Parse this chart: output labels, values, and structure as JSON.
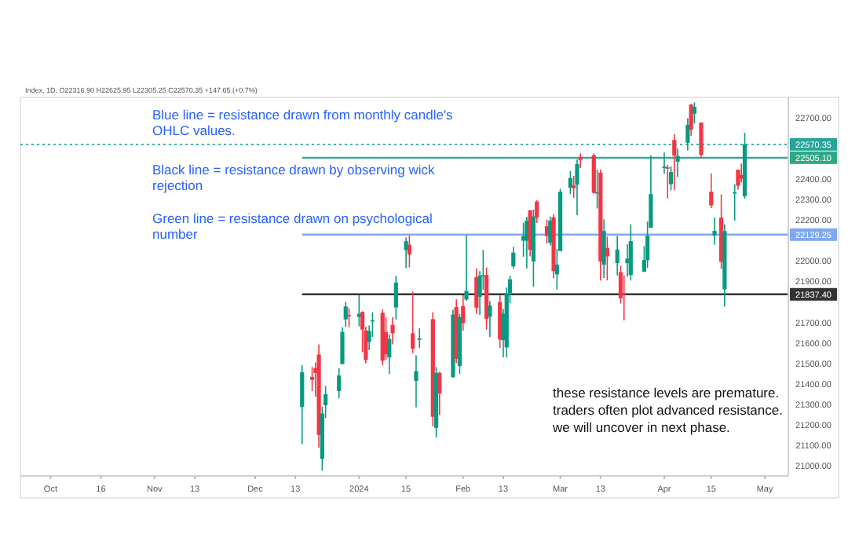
{
  "chart_data": {
    "type": "candlestick",
    "subtitle": "Index, 1D, O22316.90 H22625.95 L22305.25 C22570.35 +147.65 (+0.7%)",
    "x": [
      "2023-12-15",
      "2023-12-18",
      "2023-12-19",
      "2023-12-20",
      "2023-12-21",
      "2023-12-22",
      "2023-12-26",
      "2023-12-27",
      "2023-12-28",
      "2023-12-29",
      "2024-01-01",
      "2024-01-02",
      "2024-01-03",
      "2024-01-04",
      "2024-01-05",
      "2024-01-08",
      "2024-01-09",
      "2024-01-10",
      "2024-01-11",
      "2024-01-12",
      "2024-01-15",
      "2024-01-16",
      "2024-01-17",
      "2024-01-18",
      "2024-01-19",
      "2024-01-23",
      "2024-01-24",
      "2024-01-25",
      "2024-01-29",
      "2024-01-30",
      "2024-01-31",
      "2024-02-01",
      "2024-02-02",
      "2024-02-05",
      "2024-02-06",
      "2024-02-07",
      "2024-02-08",
      "2024-02-09",
      "2024-02-12",
      "2024-02-13",
      "2024-02-14",
      "2024-02-15",
      "2024-02-16",
      "2024-02-19",
      "2024-02-20",
      "2024-02-21",
      "2024-02-22",
      "2024-02-23",
      "2024-02-26",
      "2024-02-27",
      "2024-02-28",
      "2024-02-29",
      "2024-03-01",
      "2024-03-04",
      "2024-03-05",
      "2024-03-06",
      "2024-03-07",
      "2024-03-11",
      "2024-03-12",
      "2024-03-13",
      "2024-03-14",
      "2024-03-15",
      "2024-03-18",
      "2024-03-19",
      "2024-03-20",
      "2024-03-21",
      "2024-03-22",
      "2024-03-26",
      "2024-03-27",
      "2024-03-28",
      "2024-04-01",
      "2024-04-02",
      "2024-04-03",
      "2024-04-04",
      "2024-04-05",
      "2024-04-08",
      "2024-04-09",
      "2024-04-10",
      "2024-04-12",
      "2024-04-15",
      "2024-04-16",
      "2024-04-18",
      "2024-04-19",
      "2024-04-22",
      "2024-04-23",
      "2024-04-24",
      "2024-04-25"
    ],
    "ohlc": [
      [
        21287,
        21492,
        21105,
        21457
      ],
      [
        21434,
        21482,
        21365,
        21419
      ],
      [
        21477,
        21505,
        21338,
        21453
      ],
      [
        21543,
        21593,
        21087,
        21150
      ],
      [
        21033,
        21288,
        20976,
        21255
      ],
      [
        21296,
        21390,
        21232,
        21349
      ],
      [
        21365,
        21477,
        21329,
        21441
      ],
      [
        21497,
        21676,
        21495,
        21654
      ],
      [
        21715,
        21801,
        21678,
        21778
      ],
      [
        21737,
        21770,
        21676,
        21731
      ],
      [
        21727,
        21834,
        21681,
        21742
      ],
      [
        21751,
        21755,
        21555,
        21665
      ],
      [
        21661,
        21678,
        21500,
        21517
      ],
      [
        21605,
        21685,
        21564,
        21658
      ],
      [
        21705,
        21750,
        21629,
        21711
      ],
      [
        21747,
        21763,
        21492,
        21513
      ],
      [
        21653,
        21724,
        21517,
        21545
      ],
      [
        21529,
        21641,
        21448,
        21619
      ],
      [
        21688,
        21726,
        21593,
        21647
      ],
      [
        21773,
        21928,
        21715,
        21895
      ],
      [
        22054,
        22116,
        21965,
        22097
      ],
      [
        22080,
        22124,
        21969,
        22032
      ],
      [
        21647,
        21851,
        21550,
        21572
      ],
      [
        21414,
        21539,
        21285,
        21462
      ],
      [
        21615,
        21671,
        21575,
        21622
      ],
      [
        21716,
        21750,
        21192,
        21239
      ],
      [
        21185,
        21482,
        21137,
        21454
      ],
      [
        21454,
        21459,
        21247,
        21353
      ],
      [
        21433,
        21763,
        21430,
        21738
      ],
      [
        21775,
        21813,
        21501,
        21522
      ],
      [
        21487,
        21742,
        21449,
        21726
      ],
      [
        21780,
        21833,
        21659,
        21697
      ],
      [
        21812,
        22127,
        21806,
        21854
      ],
      [
        21921,
        21964,
        21742,
        21772
      ],
      [
        21825,
        21951,
        21737,
        21929
      ],
      [
        21931,
        22054,
        21860,
        21931
      ],
      [
        21932,
        21969,
        21665,
        21718
      ],
      [
        21728,
        21805,
        21629,
        21783
      ],
      [
        21800,
        21832,
        21575,
        21616
      ],
      [
        21613,
        21766,
        21530,
        21743
      ],
      [
        21578,
        21871,
        21530,
        21840
      ],
      [
        21844,
        21928,
        21793,
        21911
      ],
      [
        21974,
        22069,
        21963,
        22041
      ],
      [
        22100,
        22186,
        22021,
        22122
      ],
      [
        22099,
        22216,
        21964,
        22197
      ],
      [
        22248,
        22249,
        22023,
        22055
      ],
      [
        21998,
        22252,
        21875,
        22218
      ],
      [
        22291,
        22297,
        22186,
        22213
      ],
      [
        22170,
        22202,
        22085,
        22122
      ],
      [
        22090,
        22218,
        22076,
        22198
      ],
      [
        22214,
        22229,
        21915,
        21951
      ],
      [
        21935,
        22060,
        21861,
        21983
      ],
      [
        22049,
        22353,
        22048,
        22339
      ],
      [
        22358,
        22440,
        22327,
        22406
      ],
      [
        22371,
        22416,
        22309,
        22356
      ],
      [
        22373,
        22497,
        22224,
        22474
      ],
      [
        22508,
        22526,
        22455,
        22494
      ],
      [
        22517,
        22526,
        22329,
        22333
      ],
      [
        22335,
        22447,
        22257,
        22336
      ],
      [
        22432,
        22447,
        21905,
        21998
      ],
      [
        21982,
        22204,
        21917,
        22147
      ],
      [
        22064,
        22120,
        21906,
        22023
      ],
      [
        21990,
        22123,
        21930,
        22056
      ],
      [
        21946,
        21978,
        21793,
        21818
      ],
      [
        21843,
        21930,
        21710,
        21839
      ],
      [
        21990,
        22081,
        21924,
        22012
      ],
      [
        21932,
        22180,
        21905,
        22097
      ],
      [
        21948,
        22073,
        21947,
        22005
      ],
      [
        22004,
        22193,
        21967,
        22124
      ],
      [
        22163,
        22516,
        22163,
        22327
      ],
      [
        22455,
        22530,
        22428,
        22462
      ],
      [
        22458,
        22470,
        22306,
        22453
      ],
      [
        22376,
        22463,
        22346,
        22435
      ],
      [
        22592,
        22620,
        22346,
        22515
      ],
      [
        22486,
        22550,
        22410,
        22514
      ],
      [
        22578,
        22697,
        22541,
        22666
      ],
      [
        22765,
        22768,
        22612,
        22642
      ],
      [
        22720,
        22775,
        22673,
        22754
      ],
      [
        22677,
        22677,
        22503,
        22519
      ],
      [
        22339,
        22428,
        22259,
        22272
      ],
      [
        22125,
        22213,
        22079,
        22147
      ],
      [
        22212,
        22326,
        21961,
        21996
      ],
      [
        21862,
        22180,
        21777,
        22147
      ],
      [
        22336,
        22375,
        22198,
        22336
      ],
      [
        22447,
        22447,
        22349,
        22368
      ],
      [
        22421,
        22476,
        22384,
        22402
      ],
      [
        22317,
        22626,
        22305,
        22570
      ]
    ],
    "colors": [
      "#089981",
      "#f23645",
      "#f23645",
      "#f23645",
      "#089981",
      "#089981",
      "#089981",
      "#089981",
      "#089981",
      "#f23645",
      "#089981",
      "#f23645",
      "#f23645",
      "#089981",
      "#089981",
      "#f23645",
      "#f23645",
      "#089981",
      "#f23645",
      "#089981",
      "#089981",
      "#f23645",
      "#f23645",
      "#089981",
      "#089981",
      "#f23645",
      "#089981",
      "#f23645",
      "#089981",
      "#f23645",
      "#089981",
      "#f23645",
      "#089981",
      "#f23645",
      "#089981",
      "#089981",
      "#f23645",
      "#089981",
      "#f23645",
      "#089981",
      "#089981",
      "#089981",
      "#089981",
      "#089981",
      "#089981",
      "#f23645",
      "#089981",
      "#f23645",
      "#f23645",
      "#089981",
      "#f23645",
      "#089981",
      "#089981",
      "#089981",
      "#f23645",
      "#089981",
      "#f23645",
      "#f23645",
      "#089981",
      "#f23645",
      "#089981",
      "#f23645",
      "#089981",
      "#f23645",
      "#f23645",
      "#089981",
      "#089981",
      "#089981",
      "#089981",
      "#089981",
      "#089981",
      "#f23645",
      "#089981",
      "#f23645",
      "#089981",
      "#089981",
      "#f23645",
      "#089981",
      "#f23645",
      "#f23645",
      "#089981",
      "#f23645",
      "#089981",
      "#089981",
      "#f23645",
      "#f23645",
      "#089981"
    ],
    "xlim": [
      "2023-09-22",
      "2024-05-08"
    ],
    "xticks": [
      {
        "value": "2023-10-01",
        "label": "Oct"
      },
      {
        "value": "2023-10-16",
        "label": "16"
      },
      {
        "value": "2023-11-01",
        "label": "Nov"
      },
      {
        "value": "2023-11-13",
        "label": "13"
      },
      {
        "value": "2023-12-01",
        "label": "Dec"
      },
      {
        "value": "2023-12-13",
        "label": "13"
      },
      {
        "value": "2024-01-01",
        "label": "2024"
      },
      {
        "value": "2024-01-15",
        "label": "15"
      },
      {
        "value": "2024-02-01",
        "label": "Feb"
      },
      {
        "value": "2024-02-13",
        "label": "13"
      },
      {
        "value": "2024-03-01",
        "label": "Mar"
      },
      {
        "value": "2024-03-13",
        "label": "13"
      },
      {
        "value": "2024-04-01",
        "label": "Apr"
      },
      {
        "value": "2024-04-15",
        "label": "15"
      },
      {
        "value": "2024-05-01",
        "label": "May"
      }
    ],
    "ylim": [
      20950,
      22800
    ],
    "yticks": [
      {
        "value": 22700,
        "label": "22700.00"
      },
      {
        "value": 22400,
        "label": "22400.00"
      },
      {
        "value": 22300,
        "label": "22300.00"
      },
      {
        "value": 22200,
        "label": "22200.00"
      },
      {
        "value": 22000,
        "label": "22000.00"
      },
      {
        "value": 21900,
        "label": "21900.00"
      },
      {
        "value": 21700,
        "label": "21700.00"
      },
      {
        "value": 21600,
        "label": "21600.00"
      },
      {
        "value": 21500,
        "label": "21500.00"
      },
      {
        "value": 21400,
        "label": "21400.00"
      },
      {
        "value": 21300,
        "label": "21300.00"
      },
      {
        "value": 21200,
        "label": "21200.00"
      },
      {
        "value": 21100,
        "label": "21100.00"
      },
      {
        "value": 21000,
        "label": "21000.00"
      }
    ],
    "ref_lines": [
      {
        "axis": "y",
        "value": 22570.35,
        "label": "22570.35",
        "color": "#26a69a",
        "line_style": "dotted"
      },
      {
        "axis": "y",
        "value": 22505.1,
        "label": "22505.10",
        "color": "#2ea887",
        "line_style": "solid"
      },
      {
        "axis": "y",
        "value": 22129.25,
        "label": "22129.25",
        "color": "#7fa8f5",
        "line_style": "solid"
      },
      {
        "axis": "y",
        "value": 21837.4,
        "label": "21837.40",
        "color": "#333333",
        "line_style": "solid"
      }
    ],
    "annotations": [
      "Blue line = resistance drawn from monthly candle's OHLC values.",
      "Black line = resistance drawn by observing wick rejection",
      "Green line = resistance drawn on psychological number",
      "these resistance levels are premature. traders often plot advanced resistance. we will uncover in next phase."
    ]
  }
}
